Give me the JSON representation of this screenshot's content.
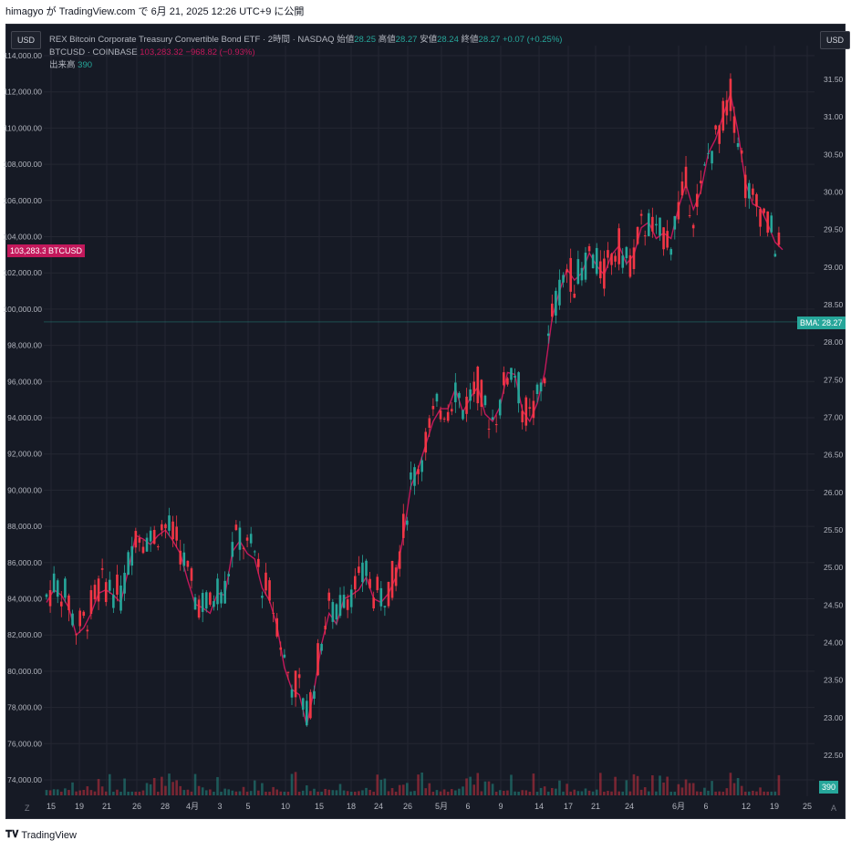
{
  "header": {
    "caption": "himagyo が TradingView.com で 6月 21, 2025 12:26 UTC+9 に公開"
  },
  "legend": {
    "etf_name": "REX Bitcoin Corporate Treasury Convertible Bond ETF · 2時間 · NASDAQ",
    "o_label": "始値",
    "o_value": "28.25",
    "h_label": "高値",
    "h_value": "28.27",
    "l_label": "安値",
    "l_value": "28.24",
    "c_label": "終値",
    "c_value": "28.27",
    "change": "+0.07 (+0.25%)",
    "btc_name": "BTCUSD · COINBASE",
    "btc_value": "103,283.32",
    "btc_change": "−968.82 (−0.93%)",
    "vol_label": "出来高",
    "vol_value": "390"
  },
  "unit_left": "USD",
  "unit_right": "USD",
  "badges": {
    "btc_label": "BTCUSD",
    "btc_price": "103,283.32",
    "bmax_label": "BMAX",
    "bmax_price": "28.27",
    "vol": "390"
  },
  "footer": {
    "brand": "TradingView",
    "z_button": "Z",
    "a_button": "A"
  },
  "colors": {
    "up": "#26a69a",
    "down": "#f23645",
    "btc_line": "#c2185b",
    "background": "#161a25",
    "grid": "#242732"
  },
  "chart_data": {
    "type": "candlestick",
    "left_axis": {
      "ticks": [
        "74,000.00",
        "76,000.00",
        "78,000.00",
        "80,000.00",
        "82,000.00",
        "84,000.00",
        "86,000.00",
        "88,000.00",
        "90,000.00",
        "92,000.00",
        "94,000.00",
        "96,000.00",
        "98,000.00",
        "100,000.00",
        "102,000.00",
        "104,000.00",
        "106,000.00",
        "108,000.00",
        "110,000.00",
        "112,000.00",
        "114,000.00"
      ],
      "min": 74000,
      "max": 114000
    },
    "right_axis": {
      "ticks": [
        "22.50",
        "23.00",
        "23.50",
        "24.00",
        "24.50",
        "25.00",
        "25.50",
        "26.00",
        "26.50",
        "27.00",
        "27.50",
        "28.00",
        "28.50",
        "29.00",
        "29.50",
        "30.00",
        "30.50",
        "31.00",
        "31.50"
      ],
      "min": 22.5,
      "max": 31.5
    },
    "x_ticks": [
      "15",
      "19",
      "21",
      "26",
      "28",
      "4月",
      "3",
      "5",
      "10",
      "15",
      "18",
      "24",
      "26",
      "5月",
      "6",
      "9",
      "14",
      "17",
      "21",
      "24",
      "6月",
      "6",
      "12",
      "19",
      "25"
    ],
    "bmax_price_line": 28.27,
    "btc_series": [
      [
        "3/14",
        83800
      ],
      [
        "3/15",
        84500
      ],
      [
        "3/16",
        84200
      ],
      [
        "3/17",
        83500
      ],
      [
        "3/18",
        82000
      ],
      [
        "3/19",
        82400
      ],
      [
        "3/20",
        83200
      ],
      [
        "3/21",
        84300
      ],
      [
        "3/22",
        84500
      ],
      [
        "3/23",
        84200
      ],
      [
        "3/24",
        83800
      ],
      [
        "3/25",
        85600
      ],
      [
        "3/26",
        87500
      ],
      [
        "3/27",
        87300
      ],
      [
        "3/28",
        87000
      ],
      [
        "3/29",
        87500
      ],
      [
        "3/30",
        87800
      ],
      [
        "3/31",
        87200
      ],
      [
        "4/1",
        86500
      ],
      [
        "4/2",
        85000
      ],
      [
        "4/3",
        83700
      ],
      [
        "4/4",
        83500
      ],
      [
        "4/5",
        83200
      ],
      [
        "4/6",
        84300
      ],
      [
        "4/7",
        84200
      ],
      [
        "4/8",
        86600
      ],
      [
        "4/9",
        87200
      ],
      [
        "4/10",
        86500
      ],
      [
        "4/11",
        86200
      ],
      [
        "4/12",
        84600
      ],
      [
        "4/13",
        83900
      ],
      [
        "4/14",
        82500
      ],
      [
        "4/15",
        80200
      ],
      [
        "4/16",
        79000
      ],
      [
        "4/17",
        78700
      ],
      [
        "4/18",
        77000
      ],
      [
        "4/19",
        79000
      ],
      [
        "4/20",
        81500
      ],
      [
        "4/21",
        83200
      ],
      [
        "4/22",
        82600
      ],
      [
        "4/23",
        84000
      ],
      [
        "4/24",
        84200
      ],
      [
        "4/25",
        84500
      ],
      [
        "4/26",
        85200
      ],
      [
        "4/27",
        84000
      ],
      [
        "4/28",
        83800
      ],
      [
        "4/29",
        84300
      ],
      [
        "4/30",
        85200
      ],
      [
        "5/1",
        87500
      ],
      [
        "5/2",
        90200
      ],
      [
        "5/3",
        91200
      ],
      [
        "5/4",
        92500
      ],
      [
        "5/5",
        93800
      ],
      [
        "5/6",
        94500
      ],
      [
        "5/7",
        94500
      ],
      [
        "5/8",
        95600
      ],
      [
        "5/9",
        94300
      ],
      [
        "5/10",
        95100
      ],
      [
        "5/11",
        95700
      ],
      [
        "5/12",
        94200
      ],
      [
        "5/13",
        93800
      ],
      [
        "5/14",
        94600
      ],
      [
        "5/15",
        96500
      ],
      [
        "5/16",
        96400
      ],
      [
        "5/17",
        94400
      ],
      [
        "5/18",
        93800
      ],
      [
        "5/19",
        94800
      ],
      [
        "5/20",
        96500
      ],
      [
        "5/21",
        99500
      ],
      [
        "5/22",
        101000
      ],
      [
        "5/23",
        102200
      ],
      [
        "5/24",
        101600
      ],
      [
        "5/25",
        102000
      ],
      [
        "5/26",
        103100
      ],
      [
        "5/27",
        102400
      ],
      [
        "5/28",
        101900
      ],
      [
        "5/29",
        103000
      ],
      [
        "5/30",
        103500
      ],
      [
        "5/31",
        102500
      ],
      [
        "6/1",
        103000
      ],
      [
        "6/2",
        104500
      ],
      [
        "6/3",
        104800
      ],
      [
        "6/4",
        103900
      ],
      [
        "6/5",
        104200
      ],
      [
        "6/6",
        103900
      ],
      [
        "6/7",
        105600
      ],
      [
        "6/8",
        106900
      ],
      [
        "6/9",
        105500
      ],
      [
        "6/10",
        106500
      ],
      [
        "6/11",
        108600
      ],
      [
        "6/12",
        109400
      ],
      [
        "6/13",
        110700
      ],
      [
        "6/14",
        111900
      ],
      [
        "6/15",
        109800
      ],
      [
        "6/16",
        107000
      ],
      [
        "6/17",
        105800
      ],
      [
        "6/18",
        105600
      ],
      [
        "6/19",
        104700
      ],
      [
        "6/20",
        103700
      ],
      [
        "6/21",
        103283
      ]
    ],
    "bmax_candles": "2-hour OHLC candles shown from mid-March to June 20; last close 28.27",
    "volume_last": 390
  }
}
